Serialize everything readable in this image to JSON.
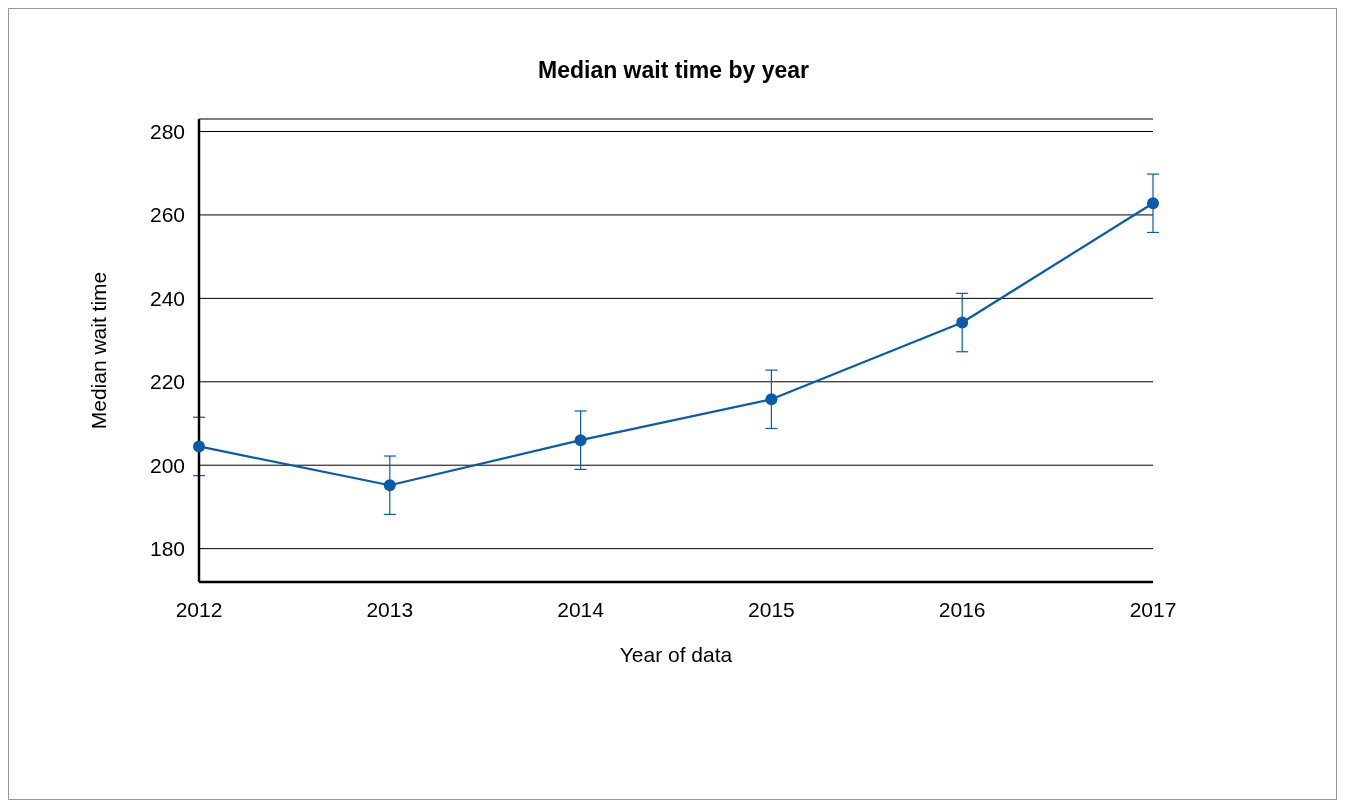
{
  "chart_data": {
    "type": "line",
    "title": "Median wait time by year",
    "xlabel": "Year of data",
    "ylabel": "Median wait time",
    "categories": [
      "2012",
      "2013",
      "2014",
      "2015",
      "2016",
      "2017"
    ],
    "series": [
      {
        "color": "#0a5bab",
        "values": [
          204.5,
          195.2,
          206,
          215.8,
          234.2,
          262.8
        ],
        "errors": [
          7,
          7,
          7,
          7,
          7,
          7
        ]
      }
    ],
    "ylim": [
      172,
      283
    ],
    "yticks": [
      180,
      200,
      220,
      240,
      260,
      280
    ],
    "grid": "y",
    "marker": "circle",
    "line_style": "solid"
  }
}
